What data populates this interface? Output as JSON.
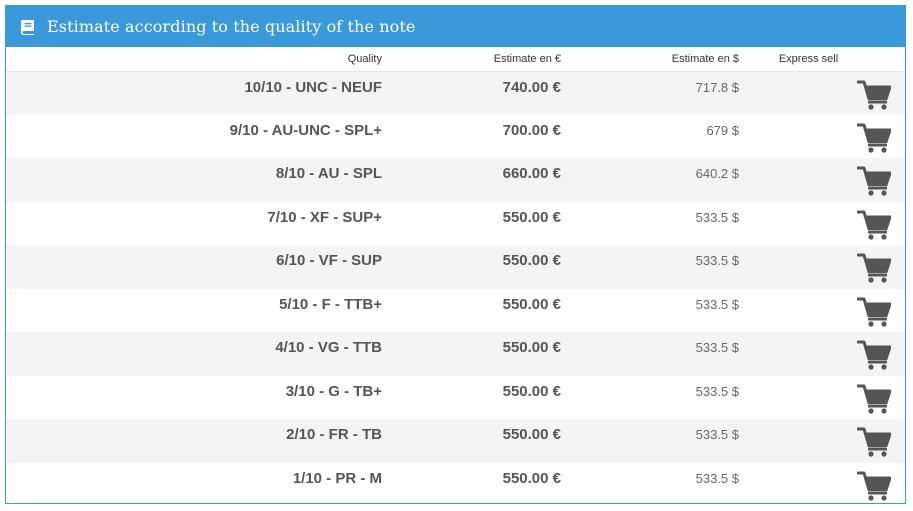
{
  "panel": {
    "title": "Estimate according to the quality of the note",
    "icon": "book-icon",
    "header_color": "#3a9ad9"
  },
  "table": {
    "headers": {
      "quality": "Quality",
      "eur": "Estimate en €",
      "usd": "Estimate en $",
      "sell": "Express sell"
    },
    "rows": [
      {
        "quality": "10/10 - UNC - NEUF",
        "eur": "740.00 €",
        "usd": "717.8 $",
        "icon": "cart-icon"
      },
      {
        "quality": "9/10 - AU-UNC - SPL+",
        "eur": "700.00 €",
        "usd": "679 $",
        "icon": "cart-icon"
      },
      {
        "quality": "8/10 - AU - SPL",
        "eur": "660.00 €",
        "usd": "640.2 $",
        "icon": "cart-icon"
      },
      {
        "quality": "7/10 - XF - SUP+",
        "eur": "550.00 €",
        "usd": "533.5 $",
        "icon": "cart-icon"
      },
      {
        "quality": "6/10 - VF - SUP",
        "eur": "550.00 €",
        "usd": "533.5 $",
        "icon": "cart-icon"
      },
      {
        "quality": "5/10 - F - TTB+",
        "eur": "550.00 €",
        "usd": "533.5 $",
        "icon": "cart-icon"
      },
      {
        "quality": "4/10 - VG - TTB",
        "eur": "550.00 €",
        "usd": "533.5 $",
        "icon": "cart-icon"
      },
      {
        "quality": "3/10 - G - TB+",
        "eur": "550.00 €",
        "usd": "533.5 $",
        "icon": "cart-icon"
      },
      {
        "quality": "2/10 - FR - TB",
        "eur": "550.00 €",
        "usd": "533.5 $",
        "icon": "cart-icon"
      },
      {
        "quality": "1/10 - PR - M",
        "eur": "550.00 €",
        "usd": "533.5 $",
        "icon": "cart-icon"
      }
    ]
  }
}
